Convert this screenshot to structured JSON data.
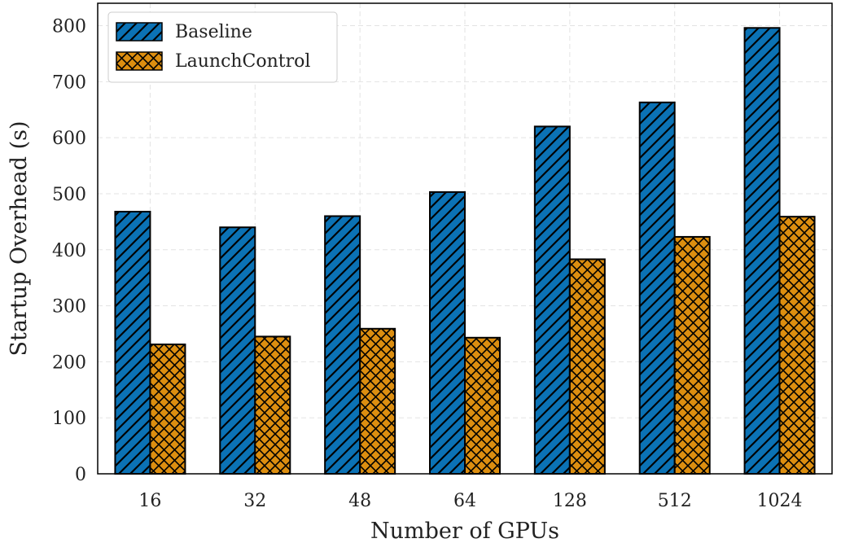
{
  "chart_data": {
    "type": "bar",
    "title": "",
    "xlabel": "Number of GPUs",
    "ylabel": "Startup Overhead (s)",
    "categories": [
      "16",
      "32",
      "48",
      "64",
      "128",
      "512",
      "1024"
    ],
    "ylim": [
      0,
      840
    ],
    "yticks": [
      0,
      100,
      200,
      300,
      400,
      500,
      600,
      700,
      800
    ],
    "grid": true,
    "legend_position": "top-left",
    "series": [
      {
        "name": "Baseline",
        "color": "#0b72b5",
        "hatch": "diagonal",
        "values": [
          468,
          440,
          460,
          503,
          620,
          663,
          796
        ]
      },
      {
        "name": "LaunchControl",
        "color": "#dc8e10",
        "hatch": "crosshatch",
        "values": [
          231,
          245,
          259,
          243,
          383,
          423,
          459
        ]
      }
    ]
  }
}
